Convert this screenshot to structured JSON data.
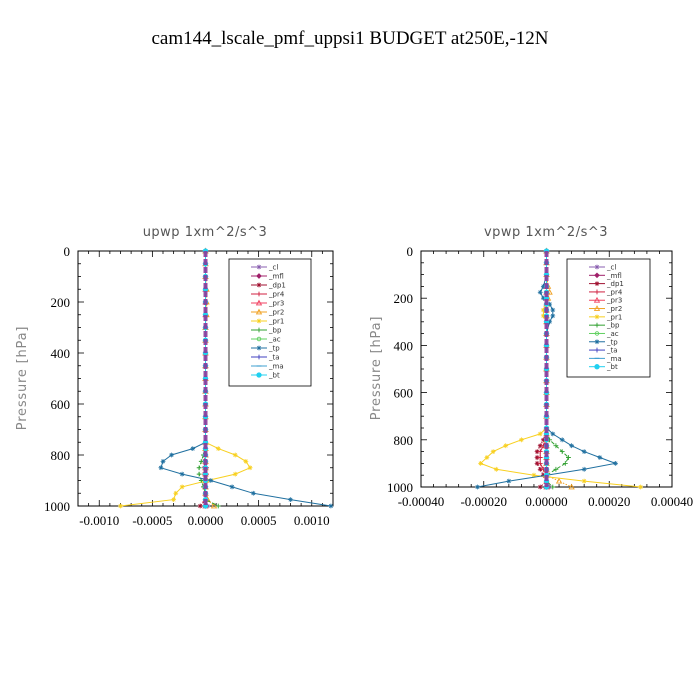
{
  "title": "cam144_lscale_pmf_uppsi1  BUDGET at250E,-12N",
  "chart_data": [
    {
      "type": "line",
      "title": "upwp   1xm^2/s^3",
      "ylabel": "Pressure [hPa]",
      "ylim": [
        1000,
        0
      ],
      "xlim": [
        -0.0012,
        0.0012
      ],
      "xticks": [
        "-0.0010",
        "-0.0005",
        "0.0000",
        "0.0005",
        "0.0010"
      ],
      "xtick_values": [
        -0.001,
        -0.0005,
        0,
        0.0005,
        0.001
      ],
      "yticks": [
        "0",
        "200",
        "400",
        "600",
        "800",
        "1000"
      ],
      "legend_position": "top-right",
      "levels": [
        0,
        50,
        100,
        150,
        200,
        250,
        300,
        350,
        400,
        450,
        500,
        550,
        600,
        650,
        700,
        750,
        775,
        800,
        825,
        850,
        875,
        900,
        925,
        950,
        975,
        1000
      ],
      "series": [
        {
          "name": "_cl",
          "color": "#8a5fb0",
          "values": [
            0,
            0,
            0,
            0,
            0,
            0,
            0,
            0,
            0,
            0,
            0,
            0,
            0,
            0,
            0,
            0,
            0,
            0,
            0,
            0,
            0,
            0,
            0,
            0,
            0,
            2e-05
          ]
        },
        {
          "name": "_mfl",
          "color": "#a0206a",
          "values": [
            0,
            0,
            0,
            0,
            0,
            0,
            0,
            0,
            0,
            0,
            0,
            0,
            0,
            0,
            0,
            0,
            0,
            0,
            0,
            0,
            0,
            0,
            0,
            0,
            0,
            0
          ]
        },
        {
          "name": "_dp1",
          "color": "#a01030",
          "values": [
            0,
            0,
            0,
            0,
            0,
            0,
            0,
            0,
            0,
            0,
            0,
            0,
            0,
            0,
            0,
            0,
            0,
            0,
            -1e-05,
            -1e-05,
            -1e-05,
            -1e-05,
            -1e-05,
            0,
            0,
            -5e-05
          ]
        },
        {
          "name": "_pr4",
          "color": "#d02040",
          "values": [
            0,
            0,
            0,
            0,
            0,
            0,
            0,
            0,
            0,
            0,
            0,
            0,
            0,
            0,
            0,
            0,
            0,
            0,
            0,
            1e-05,
            1e-05,
            0,
            0,
            0,
            0,
            0
          ]
        },
        {
          "name": "_pr3",
          "color": "#f04060",
          "values": [
            0,
            0,
            0,
            0,
            0,
            0,
            0,
            0,
            0,
            0,
            0,
            0,
            0,
            0,
            0,
            0,
            0,
            0,
            0,
            0,
            0,
            0,
            0,
            0,
            0,
            0
          ]
        },
        {
          "name": "_pr2",
          "color": "#f0a020",
          "values": [
            0,
            0,
            0,
            1e-05,
            1e-05,
            1e-05,
            0,
            0,
            0,
            0,
            0,
            0,
            0,
            0,
            0,
            0,
            0,
            0,
            0,
            0,
            0,
            0,
            0,
            0,
            2e-05,
            8e-05
          ]
        },
        {
          "name": "_pr1",
          "color": "#f8d020",
          "values": [
            0,
            0,
            0,
            0,
            0,
            0,
            0,
            0,
            0,
            0,
            0,
            0,
            0,
            0,
            0,
            0,
            0.00012,
            0.00028,
            0.00038,
            0.00042,
            0.00028,
            2e-05,
            -0.00022,
            -0.00028,
            -0.0003,
            -0.0008
          ]
        },
        {
          "name": "_bp",
          "color": "#30a030",
          "values": [
            0,
            0,
            0,
            0,
            0,
            0,
            0,
            0,
            0,
            0,
            0,
            0,
            0,
            0,
            0,
            0,
            0,
            -2e-05,
            -4e-05,
            -6e-05,
            -6e-05,
            -4e-05,
            -2e-05,
            0,
            0,
            0.00012
          ]
        },
        {
          "name": "_ac",
          "color": "#60d060",
          "values": [
            0,
            0,
            0,
            0,
            0,
            0,
            0,
            0,
            0,
            0,
            0,
            0,
            0,
            0,
            0,
            0,
            0,
            0,
            0,
            0,
            0,
            0,
            0,
            0,
            0,
            0
          ]
        },
        {
          "name": "_tp",
          "color": "#2070a0",
          "values": [
            0,
            0,
            0,
            0,
            0,
            0,
            0,
            0,
            0,
            0,
            0,
            0,
            0,
            0,
            0,
            0,
            -0.00012,
            -0.00032,
            -0.0004,
            -0.00042,
            -0.00022,
            5e-05,
            0.00025,
            0.00045,
            0.0008,
            0.00118
          ]
        },
        {
          "name": "_ta",
          "color": "#4040c0",
          "values": [
            0,
            0,
            0,
            0,
            0,
            0,
            0,
            0,
            0,
            0,
            0,
            0,
            0,
            0,
            0,
            0,
            0,
            0,
            0,
            0,
            0,
            0,
            0,
            0,
            0,
            0
          ]
        },
        {
          "name": "_ma",
          "color": "#40a0d0",
          "values": [
            0,
            0,
            0,
            0,
            0,
            0,
            0,
            0,
            0,
            0,
            0,
            0,
            0,
            0,
            0,
            0,
            0,
            0,
            0,
            0,
            0,
            0,
            0,
            0,
            0,
            0
          ]
        },
        {
          "name": "_bt",
          "color": "#20d0f0",
          "values": [
            0,
            0,
            0,
            0,
            0,
            0,
            0,
            0,
            0,
            0,
            0,
            0,
            0,
            0,
            0,
            0,
            0,
            0,
            0,
            0,
            0,
            0,
            0,
            0,
            0,
            0
          ]
        }
      ]
    },
    {
      "type": "line",
      "title": "vpwp   1xm^2/s^3",
      "ylabel": "Pressure [hPa]",
      "ylim": [
        1000,
        0
      ],
      "xlim": [
        -0.0004,
        0.0004
      ],
      "xticks": [
        "-0.00040",
        "-0.00020",
        "0.00000",
        "0.00020",
        "0.00040"
      ],
      "xtick_values": [
        -0.0004,
        -0.0002,
        0,
        0.0002,
        0.0004
      ],
      "yticks": [
        "0",
        "200",
        "400",
        "600",
        "800",
        "1000"
      ],
      "legend_position": "top-right",
      "levels": [
        0,
        50,
        100,
        150,
        175,
        200,
        225,
        250,
        275,
        300,
        350,
        400,
        450,
        500,
        550,
        600,
        650,
        700,
        750,
        775,
        800,
        825,
        850,
        875,
        900,
        925,
        950,
        975,
        1000
      ],
      "series": [
        {
          "name": "_cl",
          "color": "#8a5fb0",
          "values": [
            0,
            0,
            0,
            0,
            0,
            0,
            0,
            0,
            0,
            0,
            0,
            0,
            0,
            0,
            0,
            0,
            0,
            0,
            0,
            0,
            0,
            0,
            0,
            0,
            0,
            0,
            0,
            0,
            1e-05
          ]
        },
        {
          "name": "_mfl",
          "color": "#a0206a",
          "values": [
            0,
            0,
            0,
            0,
            0,
            0,
            0,
            0,
            0,
            0,
            0,
            0,
            0,
            0,
            0,
            0,
            0,
            0,
            0,
            0,
            0,
            0,
            0,
            0,
            0,
            0,
            0,
            0,
            0
          ]
        },
        {
          "name": "_dp1",
          "color": "#a01030",
          "values": [
            0,
            0,
            0,
            0,
            0,
            0,
            0,
            0,
            0,
            0,
            0,
            0,
            0,
            0,
            0,
            0,
            0,
            0,
            0,
            0,
            -1e-05,
            -2e-05,
            -3e-05,
            -3e-05,
            -3e-05,
            -2e-05,
            -1e-05,
            0,
            -2e-05
          ]
        },
        {
          "name": "_pr4",
          "color": "#d02040",
          "values": [
            0,
            0,
            0,
            0,
            0,
            0,
            0,
            0,
            0,
            0,
            0,
            0,
            0,
            0,
            0,
            0,
            0,
            0,
            0,
            0,
            0,
            -1e-05,
            -2e-05,
            -2e-05,
            -2e-05,
            -1e-05,
            0,
            0,
            0
          ]
        },
        {
          "name": "_pr3",
          "color": "#f04060",
          "values": [
            0,
            0,
            0,
            0,
            0,
            0,
            0,
            0,
            0,
            0,
            0,
            0,
            0,
            0,
            0,
            0,
            0,
            0,
            0,
            0,
            0,
            0,
            0,
            0,
            0,
            0,
            0,
            0,
            0
          ]
        },
        {
          "name": "_pr2",
          "color": "#f0a020",
          "values": [
            0,
            0,
            0,
            5e-06,
            1e-05,
            5e-06,
            0,
            0,
            0,
            0,
            0,
            0,
            0,
            0,
            0,
            0,
            0,
            0,
            0,
            0,
            0,
            0,
            0,
            0,
            0,
            0,
            0,
            4e-05,
            8e-05
          ]
        },
        {
          "name": "_pr1",
          "color": "#f8d020",
          "values": [
            0,
            0,
            0,
            0,
            0,
            0,
            0,
            -1e-05,
            -1e-05,
            0,
            0,
            0,
            0,
            0,
            0,
            0,
            0,
            0,
            0,
            -2e-05,
            -8e-05,
            -0.00013,
            -0.00017,
            -0.00019,
            -0.00021,
            -0.00016,
            -4e-05,
            0.00012,
            0.0003
          ]
        },
        {
          "name": "_bp",
          "color": "#30a030",
          "values": [
            0,
            0,
            0,
            0,
            0,
            0,
            0,
            0,
            0,
            0,
            0,
            0,
            0,
            0,
            0,
            0,
            0,
            0,
            0,
            0,
            1e-05,
            3e-05,
            5e-05,
            7e-05,
            6e-05,
            3e-05,
            0,
            0,
            2e-05
          ]
        },
        {
          "name": "_ac",
          "color": "#60d060",
          "values": [
            0,
            0,
            0,
            0,
            0,
            0,
            0,
            0,
            0,
            0,
            0,
            0,
            0,
            0,
            0,
            0,
            0,
            0,
            0,
            0,
            0,
            0,
            0,
            0,
            0,
            0,
            0,
            0,
            0
          ]
        },
        {
          "name": "_tp",
          "color": "#2070a0",
          "values": [
            0,
            0,
            0,
            -1e-05,
            -2e-05,
            -1e-05,
            1e-05,
            2e-05,
            2e-05,
            1e-05,
            0,
            0,
            0,
            0,
            0,
            0,
            0,
            0,
            0,
            2e-05,
            5e-05,
            8e-05,
            0.00012,
            0.00017,
            0.00022,
            0.00012,
            0,
            -0.00012,
            -0.00022
          ]
        },
        {
          "name": "_ta",
          "color": "#4040c0",
          "values": [
            0,
            0,
            0,
            0,
            0,
            0,
            0,
            0,
            0,
            0,
            0,
            0,
            0,
            0,
            0,
            0,
            0,
            0,
            0,
            0,
            0,
            0,
            0,
            0,
            0,
            0,
            0,
            0,
            0
          ]
        },
        {
          "name": "_ma",
          "color": "#40a0d0",
          "values": [
            0,
            0,
            0,
            0,
            0,
            0,
            0,
            0,
            0,
            0,
            0,
            0,
            0,
            0,
            0,
            0,
            0,
            0,
            0,
            0,
            0,
            0,
            0,
            0,
            0,
            0,
            0,
            0,
            0
          ]
        },
        {
          "name": "_bt",
          "color": "#20d0f0",
          "values": [
            0,
            0,
            0,
            0,
            0,
            0,
            0,
            0,
            0,
            0,
            0,
            0,
            0,
            0,
            0,
            0,
            0,
            0,
            0,
            0,
            0,
            0,
            0,
            0,
            0,
            0,
            0,
            0,
            0
          ]
        }
      ]
    }
  ]
}
